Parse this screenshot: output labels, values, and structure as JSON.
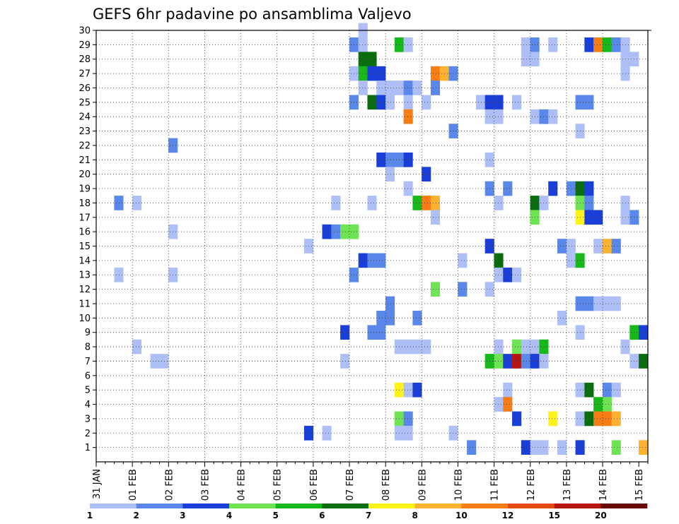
{
  "chart_data": {
    "type": "heatmap",
    "title": "GEFS 6hr padavine po ansamblima Valjevo",
    "xlabel": "",
    "ylabel": "",
    "x_tick_labels": [
      "31 JAN",
      "01 FEB",
      "02 FEB",
      "03 FEB",
      "04 FEB",
      "05 FEB",
      "06 FEB",
      "07 FEB",
      "08 FEB",
      "09 FEB",
      "10 FEB",
      "11 FEB",
      "12 FEB",
      "13 FEB",
      "14 FEB",
      "15 FEB"
    ],
    "y_tick_labels": [
      "1",
      "2",
      "3",
      "4",
      "5",
      "6",
      "7",
      "8",
      "9",
      "10",
      "11",
      "12",
      "13",
      "14",
      "15",
      "16",
      "17",
      "18",
      "19",
      "20",
      "21",
      "22",
      "23",
      "24",
      "25",
      "26",
      "27",
      "28",
      "29",
      "30"
    ],
    "x_range_steps": [
      0,
      61
    ],
    "y_range_members": [
      0,
      30
    ],
    "grid": true,
    "legend": {
      "position": "bottom",
      "levels": [
        "1",
        "2",
        "3",
        "4",
        "5",
        "6",
        "7",
        "8",
        "10",
        "12",
        "15",
        "20"
      ],
      "colors": [
        "#aebff7",
        "#5a87ea",
        "#1a3fd8",
        "#6ee452",
        "#17b81a",
        "#0b6e0e",
        "#fff21a",
        "#fdb130",
        "#f77d14",
        "#e04c14",
        "#b4160f",
        "#6a0808"
      ]
    },
    "cells": [
      [
        29,
        30,
        0
      ],
      [
        28,
        29,
        1
      ],
      [
        29,
        29,
        0
      ],
      [
        33,
        29,
        4
      ],
      [
        34,
        29,
        0
      ],
      [
        47,
        29,
        0
      ],
      [
        48,
        29,
        1
      ],
      [
        50,
        29,
        0
      ],
      [
        54,
        29,
        2
      ],
      [
        55,
        29,
        8
      ],
      [
        56,
        29,
        4
      ],
      [
        57,
        29,
        1
      ],
      [
        58,
        29,
        0
      ],
      [
        29,
        28,
        5
      ],
      [
        30,
        28,
        5
      ],
      [
        47,
        28,
        0
      ],
      [
        48,
        28,
        0
      ],
      [
        58,
        28,
        0
      ],
      [
        59,
        28,
        0
      ],
      [
        28,
        27,
        0
      ],
      [
        29,
        27,
        4
      ],
      [
        30,
        27,
        2
      ],
      [
        31,
        27,
        2
      ],
      [
        37,
        27,
        8
      ],
      [
        38,
        27,
        7
      ],
      [
        39,
        27,
        1
      ],
      [
        58,
        27,
        0
      ],
      [
        29,
        26,
        0
      ],
      [
        31,
        26,
        0
      ],
      [
        32,
        26,
        0
      ],
      [
        33,
        26,
        0
      ],
      [
        34,
        26,
        1
      ],
      [
        35,
        26,
        0
      ],
      [
        37,
        26,
        1
      ],
      [
        28,
        25,
        1
      ],
      [
        30,
        25,
        5
      ],
      [
        31,
        25,
        2
      ],
      [
        32,
        25,
        0
      ],
      [
        34,
        25,
        0
      ],
      [
        36,
        25,
        0
      ],
      [
        42,
        25,
        0
      ],
      [
        43,
        25,
        2
      ],
      [
        44,
        25,
        2
      ],
      [
        46,
        25,
        0
      ],
      [
        53,
        25,
        1
      ],
      [
        54,
        25,
        1
      ],
      [
        34,
        24,
        8
      ],
      [
        43,
        24,
        0
      ],
      [
        44,
        24,
        0
      ],
      [
        48,
        24,
        0
      ],
      [
        49,
        24,
        1
      ],
      [
        50,
        24,
        0
      ],
      [
        39,
        23,
        1
      ],
      [
        53,
        23,
        0
      ],
      [
        8,
        22,
        1
      ],
      [
        31,
        21,
        2
      ],
      [
        32,
        21,
        1
      ],
      [
        33,
        21,
        1
      ],
      [
        34,
        21,
        2
      ],
      [
        43,
        21,
        0
      ],
      [
        32,
        20,
        0
      ],
      [
        36,
        20,
        2
      ],
      [
        34,
        19,
        0
      ],
      [
        43,
        19,
        1
      ],
      [
        45,
        19,
        1
      ],
      [
        50,
        19,
        2
      ],
      [
        52,
        19,
        1
      ],
      [
        53,
        19,
        5
      ],
      [
        54,
        19,
        2
      ],
      [
        2,
        18,
        1
      ],
      [
        4,
        18,
        0
      ],
      [
        26,
        18,
        0
      ],
      [
        30,
        18,
        0
      ],
      [
        35,
        18,
        4
      ],
      [
        36,
        18,
        8
      ],
      [
        37,
        18,
        7
      ],
      [
        44,
        18,
        0
      ],
      [
        48,
        18,
        5
      ],
      [
        49,
        18,
        0
      ],
      [
        53,
        18,
        3
      ],
      [
        54,
        18,
        1
      ],
      [
        58,
        18,
        0
      ],
      [
        37,
        17,
        0
      ],
      [
        48,
        17,
        3
      ],
      [
        53,
        17,
        6
      ],
      [
        54,
        17,
        2
      ],
      [
        55,
        17,
        2
      ],
      [
        58,
        17,
        0
      ],
      [
        59,
        17,
        1
      ],
      [
        8,
        16,
        0
      ],
      [
        25,
        16,
        2
      ],
      [
        26,
        16,
        1
      ],
      [
        27,
        16,
        3
      ],
      [
        28,
        16,
        3
      ],
      [
        23,
        15,
        0
      ],
      [
        43,
        15,
        2
      ],
      [
        51,
        15,
        1
      ],
      [
        52,
        15,
        0
      ],
      [
        55,
        15,
        0
      ],
      [
        56,
        15,
        7
      ],
      [
        57,
        15,
        1
      ],
      [
        29,
        14,
        2
      ],
      [
        30,
        14,
        1
      ],
      [
        31,
        14,
        1
      ],
      [
        40,
        14,
        0
      ],
      [
        44,
        14,
        5
      ],
      [
        52,
        14,
        0
      ],
      [
        53,
        14,
        4
      ],
      [
        2,
        13,
        0
      ],
      [
        8,
        13,
        0
      ],
      [
        28,
        13,
        1
      ],
      [
        44,
        13,
        0
      ],
      [
        45,
        13,
        2
      ],
      [
        46,
        13,
        0
      ],
      [
        37,
        12,
        3
      ],
      [
        40,
        12,
        1
      ],
      [
        43,
        12,
        0
      ],
      [
        32,
        11,
        1
      ],
      [
        53,
        11,
        1
      ],
      [
        54,
        11,
        1
      ],
      [
        55,
        11,
        0
      ],
      [
        56,
        11,
        0
      ],
      [
        57,
        11,
        0
      ],
      [
        31,
        10,
        1
      ],
      [
        32,
        10,
        1
      ],
      [
        35,
        10,
        1
      ],
      [
        51,
        10,
        0
      ],
      [
        27,
        9,
        2
      ],
      [
        30,
        9,
        1
      ],
      [
        31,
        9,
        1
      ],
      [
        53,
        9,
        0
      ],
      [
        59,
        9,
        4
      ],
      [
        60,
        9,
        2
      ],
      [
        4,
        8,
        0
      ],
      [
        33,
        8,
        0
      ],
      [
        34,
        8,
        0
      ],
      [
        35,
        8,
        0
      ],
      [
        36,
        8,
        0
      ],
      [
        44,
        8,
        0
      ],
      [
        46,
        8,
        3
      ],
      [
        47,
        8,
        0
      ],
      [
        48,
        8,
        0
      ],
      [
        49,
        8,
        4
      ],
      [
        58,
        8,
        0
      ],
      [
        6,
        7,
        0
      ],
      [
        7,
        7,
        0
      ],
      [
        27,
        7,
        0
      ],
      [
        43,
        7,
        4
      ],
      [
        44,
        7,
        3
      ],
      [
        45,
        7,
        2
      ],
      [
        46,
        7,
        10
      ],
      [
        47,
        7,
        1
      ],
      [
        48,
        7,
        2
      ],
      [
        49,
        7,
        0
      ],
      [
        59,
        7,
        0
      ],
      [
        60,
        7,
        5
      ],
      [
        33,
        5,
        6
      ],
      [
        34,
        5,
        0
      ],
      [
        35,
        5,
        2
      ],
      [
        45,
        5,
        0
      ],
      [
        53,
        5,
        0
      ],
      [
        54,
        5,
        5
      ],
      [
        56,
        5,
        1
      ],
      [
        57,
        5,
        0
      ],
      [
        44,
        4,
        0
      ],
      [
        45,
        4,
        8
      ],
      [
        55,
        4,
        4
      ],
      [
        56,
        4,
        3
      ],
      [
        33,
        3,
        3
      ],
      [
        34,
        3,
        1
      ],
      [
        46,
        3,
        2
      ],
      [
        50,
        3,
        6
      ],
      [
        53,
        3,
        0
      ],
      [
        54,
        3,
        5
      ],
      [
        55,
        3,
        8
      ],
      [
        56,
        3,
        8
      ],
      [
        57,
        3,
        7
      ],
      [
        23,
        2,
        2
      ],
      [
        25,
        2,
        0
      ],
      [
        33,
        2,
        0
      ],
      [
        34,
        2,
        0
      ],
      [
        39,
        2,
        0
      ],
      [
        41,
        1,
        1
      ],
      [
        47,
        1,
        2
      ],
      [
        48,
        1,
        0
      ],
      [
        49,
        1,
        0
      ],
      [
        51,
        1,
        0
      ],
      [
        53,
        1,
        2
      ],
      [
        57,
        1,
        3
      ],
      [
        60,
        1,
        7
      ]
    ]
  }
}
